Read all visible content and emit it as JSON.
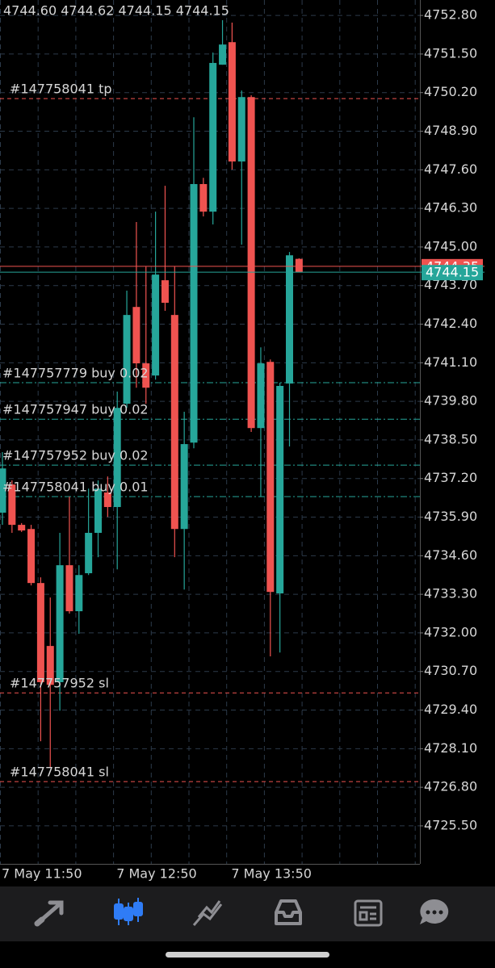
{
  "chart_data": {
    "type": "candlestick",
    "header": "4744.60 4744.62 4744.15 4744.15",
    "categories": [
      "7 May 11:50",
      null,
      null,
      null,
      null,
      null,
      null,
      null,
      null,
      null,
      null,
      null,
      "7 May 12:50",
      null,
      null,
      null,
      null,
      null,
      null,
      null,
      null,
      null,
      null,
      null,
      "7 May 13:50",
      null,
      null,
      null,
      null,
      null,
      null,
      null
    ],
    "open": [
      4736.05,
      4737.0,
      4735.64,
      4735.5,
      4733.68,
      4731.56,
      4730.34,
      4734.28,
      4732.73,
      4734.01,
      4735.37,
      4736.73,
      4736.24,
      4739.72,
      4742.98,
      4741.08,
      4740.67,
      4743.88,
      4742.71,
      4735.5,
      4738.41,
      4747.12,
      4746.19,
      4751.14,
      4751.9,
      4747.88,
      4750.05,
      4738.9,
      4741.13,
      4733.33,
      4740.4,
      4744.6
    ],
    "high": [
      4738.09,
      4737.14,
      4735.7,
      4735.64,
      4733.87,
      4733.19,
      4735.37,
      4736.59,
      4734.28,
      4736.86,
      4737.14,
      4737.27,
      4740.13,
      4743.53,
      4745.84,
      4744.34,
      4746.19,
      4747.06,
      4744.34,
      4739.45,
      4749.37,
      4747.33,
      4751.55,
      4752.64,
      4752.56,
      4750.27,
      4750.11,
      4741.62,
      4741.21,
      4740.43,
      4744.83,
      4744.62
    ],
    "low": [
      4735.64,
      4735.37,
      4735.4,
      4733.6,
      4728.35,
      4727.48,
      4729.38,
      4732.65,
      4731.97,
      4733.95,
      4734.55,
      4735.91,
      4734.14,
      4739.58,
      4740.26,
      4739.72,
      4740.53,
      4742.85,
      4734.55,
      4733.46,
      4738.22,
      4746.03,
      4745.76,
      4751.14,
      4747.61,
      4745.08,
      4738.77,
      4736.59,
      4731.21,
      4731.34,
      4738.28,
      4744.15
    ],
    "close": [
      4737.54,
      4735.64,
      4735.45,
      4733.68,
      4730.34,
      4730.25,
      4734.28,
      4732.73,
      4733.95,
      4735.37,
      4736.86,
      4736.24,
      4739.58,
      4742.71,
      4741.08,
      4740.26,
      4744.07,
      4743.12,
      4735.5,
      4738.36,
      4747.12,
      4746.19,
      4751.2,
      4751.82,
      4747.88,
      4750.05,
      4738.9,
      4741.08,
      4733.38,
      4740.32,
      4744.72,
      4744.15
    ],
    "up_color": "#26a69a",
    "down_color": "#ef5350",
    "ylim": [
      4724.22,
      4753.32
    ],
    "yticks": [
      {
        "value": 4752.8,
        "label": "4752.80"
      },
      {
        "value": 4751.5,
        "label": "4751.50"
      },
      {
        "value": 4750.2,
        "label": "4750.20"
      },
      {
        "value": 4748.9,
        "label": "4748.90"
      },
      {
        "value": 4747.6,
        "label": "4747.60"
      },
      {
        "value": 4746.3,
        "label": "4746.30"
      },
      {
        "value": 4745,
        "label": "4745.00"
      },
      {
        "value": 4743.7,
        "label": "4743.70"
      },
      {
        "value": 4742.4,
        "label": "4742.40"
      },
      {
        "value": 4741.1,
        "label": "4741.10"
      },
      {
        "value": 4739.8,
        "label": "4739.80"
      },
      {
        "value": 4738.5,
        "label": "4738.50"
      },
      {
        "value": 4737.2,
        "label": "4737.20"
      },
      {
        "value": 4735.9,
        "label": "4735.90"
      },
      {
        "value": 4734.6,
        "label": "4734.60"
      },
      {
        "value": 4733.3,
        "label": "4733.30"
      },
      {
        "value": 4732,
        "label": "4732.00"
      },
      {
        "value": 4730.7,
        "label": "4730.70"
      },
      {
        "value": 4729.4,
        "label": "4729.40"
      },
      {
        "value": 4728.1,
        "label": "4728.10"
      },
      {
        "value": 4726.8,
        "label": "4726.80"
      },
      {
        "value": 4725.5,
        "label": "4725.50"
      }
    ],
    "grid": true,
    "levels": [
      {
        "label": "#147758041 tp",
        "value": 4750.0,
        "color": "#ef5350",
        "style": "dash"
      },
      {
        "label": "#147757779 buy 0.02",
        "value": 4740.43,
        "color": "#26a69a",
        "style": "dashdot"
      },
      {
        "label": "#147757947 buy 0.02",
        "value": 4739.2,
        "color": "#26a69a",
        "style": "dashdot"
      },
      {
        "label": "#147757952 buy 0.02",
        "value": 4737.65,
        "color": "#26a69a",
        "style": "dashdot"
      },
      {
        "label": "#147758041 buy 0.01",
        "value": 4736.59,
        "color": "#26a69a",
        "style": "dashdot"
      },
      {
        "label": "#147757952 sl",
        "value": 4729.98,
        "color": "#ef5350",
        "style": "dash"
      },
      {
        "label": "#147758041 sl",
        "value": 4726.99,
        "color": "#ef5350",
        "style": "dash"
      }
    ],
    "price_lines": [
      {
        "value": 4744.35,
        "color": "#ef5350"
      },
      {
        "value": 4744.15,
        "color": "#26a69a"
      }
    ]
  }
}
